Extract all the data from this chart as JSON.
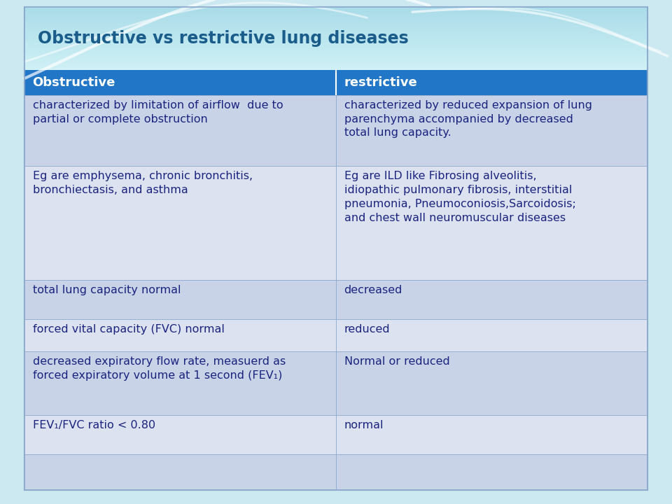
{
  "title": "Obstructive vs restrictive lung diseases",
  "title_color": "#1a5c8a",
  "title_fontsize": 17,
  "header_bg": "#2176c7",
  "header_text_color": "#ffffff",
  "header_fontsize": 13,
  "row_bg_alt": "#c8d3e8",
  "row_bg_main": "#dce2f0",
  "cell_text_color": "#1a237e",
  "cell_fontsize": 11.5,
  "outer_bg": "#cce8f0",
  "title_bg": "#a8d8e8",
  "border_color": "#8aa8cc",
  "col_split": 0.5,
  "headers": [
    "Obstructive",
    "restrictive"
  ],
  "rows": [
    {
      "left": "characterized by limitation of airflow  due to\npartial or complete obstruction",
      "right": "characterized by reduced expansion of lung\nparenchyma accompanied by decreased\ntotal lung capacity."
    },
    {
      "left": "Eg are emphysema, chronic bronchitis,\nbronchiectasis, and asthma",
      "right": "Eg are ILD like Fibrosing alveolitis,\nidiopathic pulmonary fibrosis, interstitial\npneumonia, Pneumoconiosis,Sarcoidosis;\nand chest wall neuromuscular diseases"
    },
    {
      "left": "total lung capacity normal",
      "right": "decreased"
    },
    {
      "left": "forced vital capacity (FVC) normal",
      "right": "reduced"
    },
    {
      "left": "decreased expiratory flow rate, measuerd as\nforced expiratory volume at 1 second (FEV₁)",
      "right": "Normal or reduced"
    },
    {
      "left": "FEV₁/FVC ratio < 0.80",
      "right": "normal"
    },
    {
      "left": "",
      "right": ""
    }
  ]
}
